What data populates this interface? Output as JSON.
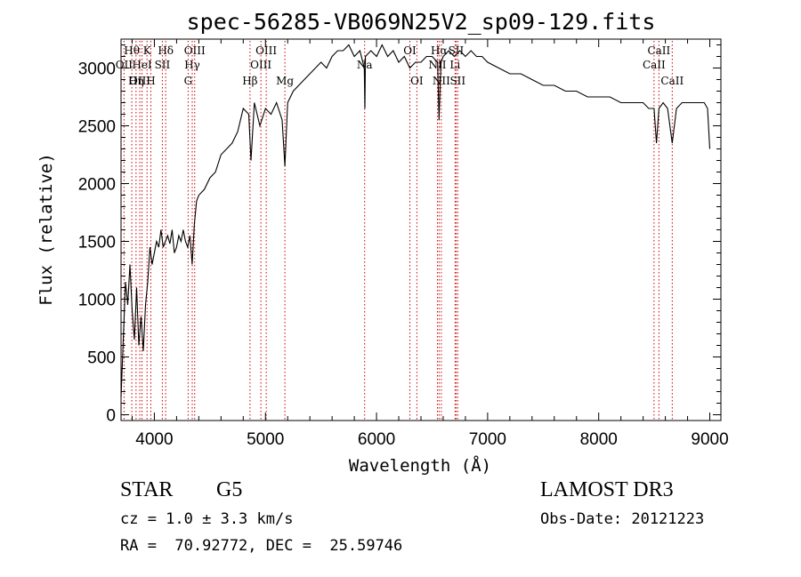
{
  "chart_data": {
    "type": "line",
    "title": "spec-56285-VB069N25V2_sp09-129.fits",
    "xlabel": "Wavelength (Å)",
    "ylabel": "Flux (relative)",
    "xlim": [
      3700,
      9100
    ],
    "ylim": [
      -50,
      3250
    ],
    "xticks": [
      {
        "value": 4000,
        "label": "4000"
      },
      {
        "value": 5000,
        "label": "5000"
      },
      {
        "value": 6000,
        "label": "6000"
      },
      {
        "value": 7000,
        "label": "7000"
      },
      {
        "value": 8000,
        "label": "8000"
      },
      {
        "value": 9000,
        "label": "9000"
      }
    ],
    "yticks": [
      {
        "value": 0,
        "label": "0"
      },
      {
        "value": 500,
        "label": "500"
      },
      {
        "value": 1000,
        "label": "1000"
      },
      {
        "value": 1500,
        "label": "1500"
      },
      {
        "value": 2000,
        "label": "2000"
      },
      {
        "value": 2500,
        "label": "2500"
      },
      {
        "value": 3000,
        "label": "3000"
      }
    ],
    "series": [
      {
        "name": "spectrum",
        "x": [
          3700,
          3720,
          3740,
          3760,
          3780,
          3800,
          3820,
          3840,
          3860,
          3880,
          3900,
          3920,
          3940,
          3960,
          3980,
          4000,
          4020,
          4040,
          4060,
          4080,
          4100,
          4120,
          4140,
          4160,
          4180,
          4200,
          4220,
          4240,
          4260,
          4280,
          4300,
          4320,
          4340,
          4360,
          4380,
          4400,
          4450,
          4500,
          4550,
          4600,
          4650,
          4700,
          4750,
          4800,
          4850,
          4870,
          4900,
          4950,
          5000,
          5050,
          5100,
          5150,
          5175,
          5200,
          5250,
          5300,
          5350,
          5400,
          5450,
          5500,
          5550,
          5600,
          5650,
          5700,
          5750,
          5800,
          5850,
          5890,
          5895,
          5900,
          5950,
          6000,
          6050,
          6100,
          6150,
          6200,
          6250,
          6300,
          6350,
          6400,
          6450,
          6500,
          6550,
          6563,
          6580,
          6600,
          6650,
          6700,
          6750,
          6800,
          6850,
          6900,
          6950,
          7000,
          7100,
          7200,
          7300,
          7400,
          7500,
          7600,
          7700,
          7800,
          7900,
          8000,
          8100,
          8200,
          8300,
          8400,
          8450,
          8498,
          8520,
          8542,
          8580,
          8620,
          8662,
          8700,
          8750,
          8800,
          8850,
          8900,
          8950,
          8980,
          9000
        ],
        "y": [
          150,
          650,
          1150,
          950,
          1300,
          900,
          650,
          1100,
          600,
          850,
          550,
          950,
          1150,
          1450,
          1300,
          1400,
          1500,
          1450,
          1600,
          1450,
          1500,
          1550,
          1480,
          1600,
          1400,
          1450,
          1550,
          1500,
          1600,
          1500,
          1450,
          1550,
          1300,
          1650,
          1850,
          1900,
          1950,
          2050,
          2100,
          2250,
          2300,
          2350,
          2450,
          2650,
          2600,
          2200,
          2700,
          2500,
          2650,
          2600,
          2700,
          2550,
          2150,
          2700,
          2800,
          2850,
          2900,
          2950,
          3000,
          3050,
          3000,
          3100,
          3150,
          3150,
          3200,
          3100,
          3150,
          3000,
          2650,
          3100,
          3150,
          3100,
          3200,
          3100,
          3150,
          3050,
          3100,
          3000,
          3050,
          3050,
          3100,
          3100,
          3050,
          2550,
          3050,
          3100,
          3150,
          3100,
          3150,
          3100,
          3150,
          3100,
          3100,
          3050,
          3000,
          2950,
          2950,
          2900,
          2850,
          2850,
          2800,
          2800,
          2750,
          2750,
          2750,
          2700,
          2700,
          2700,
          2650,
          2650,
          2350,
          2650,
          2700,
          2650,
          2350,
          2650,
          2700,
          2700,
          2700,
          2700,
          2700,
          2650,
          2300
        ]
      }
    ],
    "line_markers": [
      {
        "label": "Hθ",
        "wavelength": 3797,
        "row": 1
      },
      {
        "label": "OII",
        "wavelength": 3727,
        "row": 2
      },
      {
        "label": "OIII",
        "wavelength": 3869,
        "row": 3
      },
      {
        "label": "K",
        "wavelength": 3934,
        "row": 1
      },
      {
        "label": "HeI",
        "wavelength": 3889,
        "row": 2
      },
      {
        "label": "Hη",
        "wavelength": 3835,
        "row": 3
      },
      {
        "label": "H",
        "wavelength": 3968,
        "row": 3
      },
      {
        "label": "SII",
        "wavelength": 4072,
        "row": 2
      },
      {
        "label": "Hδ",
        "wavelength": 4102,
        "row": 1
      },
      {
        "label": "OIII",
        "wavelength": 4363,
        "row": 1
      },
      {
        "label": "Hγ",
        "wavelength": 4341,
        "row": 2
      },
      {
        "label": "G",
        "wavelength": 4304,
        "row": 3
      },
      {
        "label": "Hβ",
        "wavelength": 4861,
        "row": 3
      },
      {
        "label": "OIII",
        "wavelength": 5007,
        "row": 1
      },
      {
        "label": "OIII",
        "wavelength": 4959,
        "row": 2
      },
      {
        "label": "Mg",
        "wavelength": 5175,
        "row": 3
      },
      {
        "label": "Na",
        "wavelength": 5893,
        "row": 2
      },
      {
        "label": "OI",
        "wavelength": 6300,
        "row": 1
      },
      {
        "label": "OI",
        "wavelength": 6363,
        "row": 3
      },
      {
        "label": "NII",
        "wavelength": 6548,
        "row": 2
      },
      {
        "label": "Hα",
        "wavelength": 6563,
        "row": 1
      },
      {
        "label": "NII",
        "wavelength": 6583,
        "row": 3
      },
      {
        "label": "SII",
        "wavelength": 6716,
        "row": 1
      },
      {
        "label": "Li",
        "wavelength": 6707,
        "row": 2
      },
      {
        "label": "SII",
        "wavelength": 6731,
        "row": 3
      },
      {
        "label": "CaII",
        "wavelength": 8542,
        "row": 1
      },
      {
        "label": "CaII",
        "wavelength": 8498,
        "row": 2
      },
      {
        "label": "CaII",
        "wavelength": 8662,
        "row": 3
      }
    ]
  },
  "info": {
    "object_class": "STAR",
    "subclass": "G5",
    "survey": "LAMOST DR3",
    "redshift_text": "cz = 1.0 ± 3.3 km/s",
    "obs_date_text": "Obs-Date: 20121223",
    "coords_text": "RA =  70.92772, DEC =  25.59746"
  },
  "colors": {
    "axis": "#000000",
    "spectrum": "#000000",
    "marker_line": "#cc0000"
  }
}
